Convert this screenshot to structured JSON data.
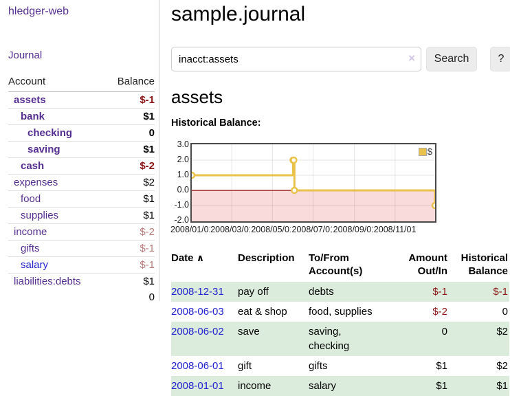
{
  "app": {
    "title": "hledger-web"
  },
  "sidebar": {
    "journal_link": "Journal",
    "table": {
      "headers": {
        "account": "Account",
        "balance": "Balance"
      },
      "rows": [
        {
          "account": "assets",
          "balance": "$-1",
          "level": 1,
          "bold": true,
          "negative": true,
          "blue": false
        },
        {
          "account": "bank",
          "balance": "$1",
          "level": 2,
          "bold": true,
          "negative": false,
          "blue": false
        },
        {
          "account": "checking",
          "balance": "0",
          "level": 3,
          "bold": true,
          "negative": false,
          "blue": false
        },
        {
          "account": "saving",
          "balance": "$1",
          "level": 3,
          "bold": true,
          "negative": false,
          "blue": false
        },
        {
          "account": "cash",
          "balance": "$-2",
          "level": 2,
          "bold": true,
          "negative": true,
          "blue": false
        },
        {
          "account": "expenses",
          "balance": "$2",
          "level": 1,
          "bold": false,
          "negative": false,
          "blue": false
        },
        {
          "account": "food",
          "balance": "$1",
          "level": 2,
          "bold": false,
          "negative": false,
          "blue": false
        },
        {
          "account": "supplies",
          "balance": "$1",
          "level": 2,
          "bold": false,
          "negative": false,
          "blue": false
        },
        {
          "account": "income",
          "balance": "$-2",
          "level": 1,
          "bold": false,
          "negative": true,
          "blue": false
        },
        {
          "account": "gifts",
          "balance": "$-1",
          "level": 2,
          "bold": false,
          "negative": true,
          "blue": false
        },
        {
          "account": "salary",
          "balance": "$-1",
          "level": 2,
          "bold": false,
          "negative": true,
          "blue": true
        },
        {
          "account": "liabilities:debts",
          "balance": "$1",
          "level": 1,
          "bold": false,
          "negative": false,
          "blue": false
        }
      ],
      "total": "0"
    }
  },
  "header": {
    "title": "sample.journal"
  },
  "search": {
    "value": "inacct:assets",
    "clear_icon": "×",
    "button_label": "Search",
    "help_label": "?"
  },
  "account_page": {
    "title": "assets",
    "chart_label": "Historical Balance:"
  },
  "chart_data": {
    "type": "line",
    "step": true,
    "title": "Historical Balance:",
    "series": [
      {
        "name": "$",
        "points": [
          [
            "2008-01-01",
            1
          ],
          [
            "2008-06-01",
            2
          ],
          [
            "2008-06-02",
            2
          ],
          [
            "2008-06-03",
            0
          ],
          [
            "2008-12-31",
            -1
          ]
        ]
      }
    ],
    "xlim": [
      "2008-01-01",
      "2008-12-31"
    ],
    "ylim": [
      -2,
      3
    ],
    "y_ticks": [
      "3.0",
      "2.0",
      "1.0",
      "0.0",
      "-1.0",
      "-2.0"
    ],
    "x_ticks": [
      "2008/01/01",
      "2008/03/01",
      "2008/05/01",
      "2008/07/01",
      "2008/09/01",
      "2008/11/01"
    ],
    "grid": true,
    "legend_position": "top-right",
    "colors": {
      "line": "#e8c24a",
      "marker_fill": "#ffffff",
      "negative_region": "#f9dbdb",
      "zero_line": "#8b0000",
      "gridline": "rgba(0,0,0,0.10)"
    }
  },
  "register": {
    "headers": {
      "date": "Date",
      "description": "Description",
      "accounts": "To/From Account(s)",
      "amount": "Amount Out/In",
      "balance": "Historical Balance"
    },
    "sort_icon": "∧",
    "rows": [
      {
        "date": "2008-12-31",
        "description": "pay off",
        "accounts": "debts",
        "amount": "$-1",
        "balance": "$-1",
        "amount_negative": true,
        "balance_negative": true
      },
      {
        "date": "2008-06-03",
        "description": "eat & shop",
        "accounts": "food, supplies",
        "amount": "$-2",
        "balance": "0",
        "amount_negative": true,
        "balance_negative": false
      },
      {
        "date": "2008-06-02",
        "description": "save",
        "accounts": "saving, checking",
        "amount": "0",
        "balance": "$2",
        "amount_negative": false,
        "balance_negative": false
      },
      {
        "date": "2008-06-01",
        "description": "gift",
        "accounts": "gifts",
        "amount": "$1",
        "balance": "$2",
        "amount_negative": false,
        "balance_negative": false
      },
      {
        "date": "2008-01-01",
        "description": "income",
        "accounts": "salary",
        "amount": "$1",
        "balance": "$1",
        "amount_negative": false,
        "balance_negative": false
      }
    ]
  }
}
